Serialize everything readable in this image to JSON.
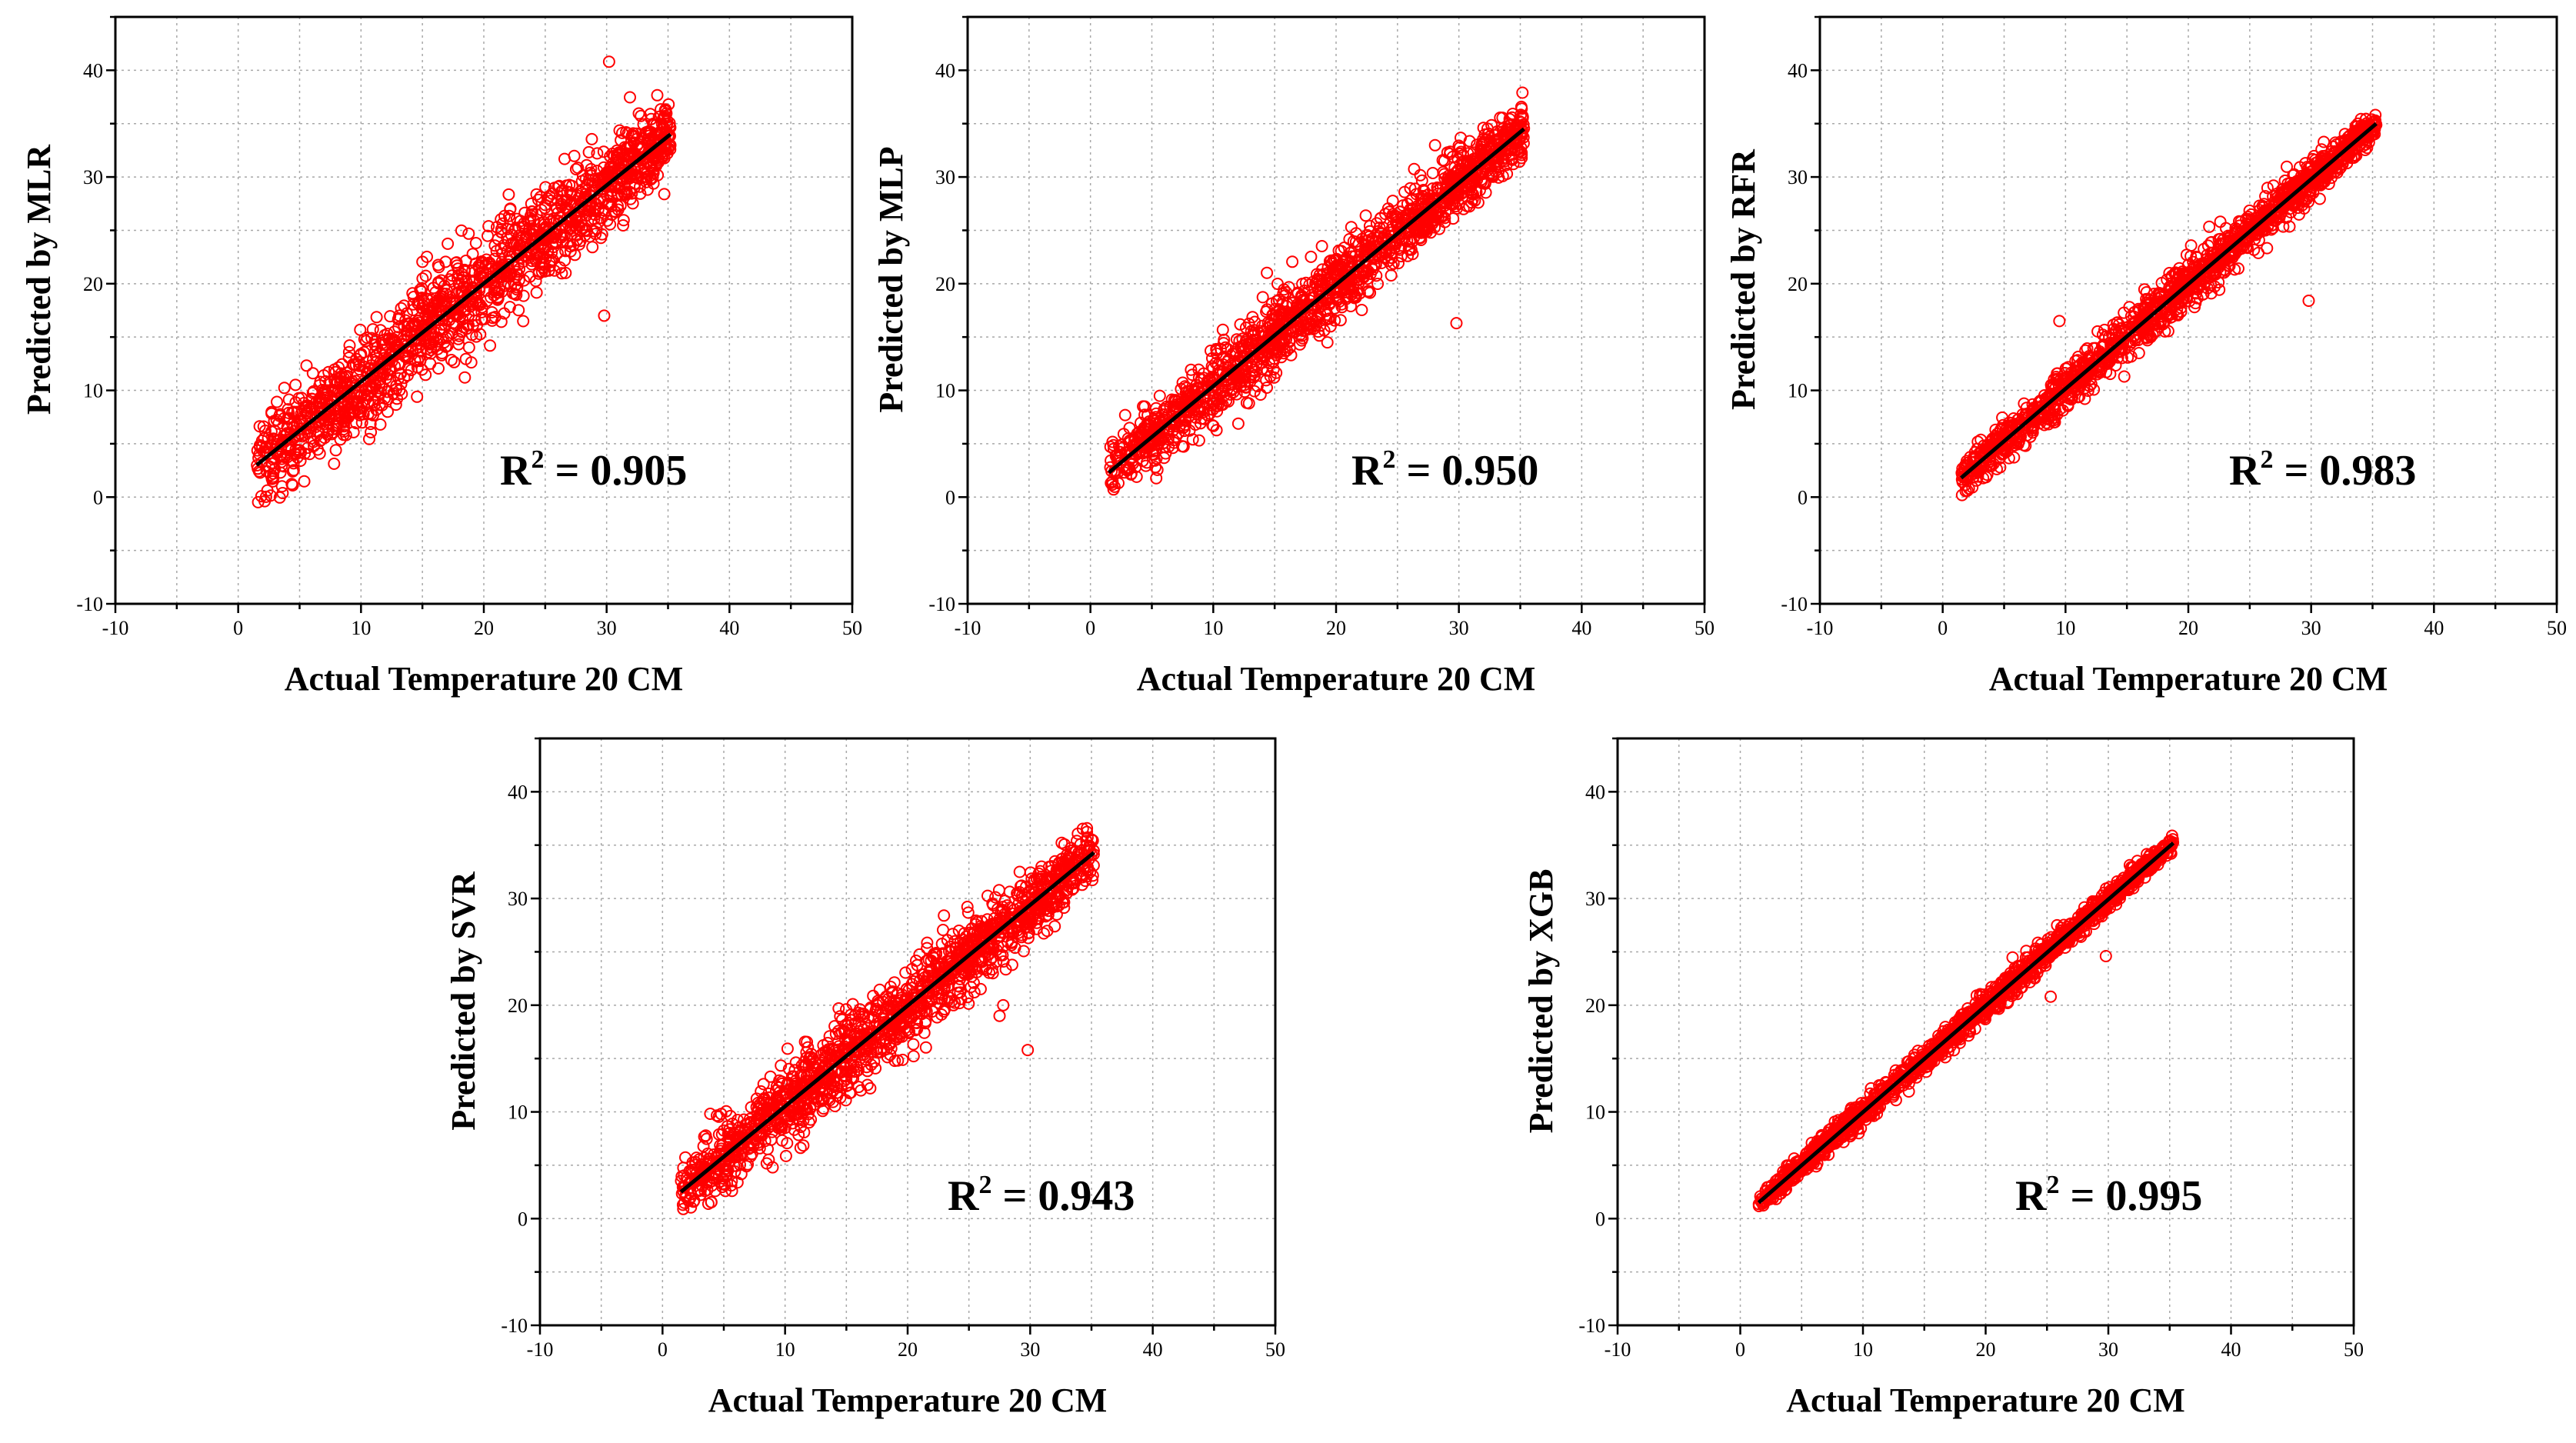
{
  "figure": {
    "description_color": "#ff0000",
    "marker_color": "#ff0000",
    "fit_line_color": "#000000",
    "grid_color": "#a8a8a8"
  },
  "chart_data": [
    {
      "id": "mlr",
      "type": "scatter",
      "xlabel": "Actual Temperature 20 CM",
      "ylabel": "Predicted by MLR",
      "xlim": [
        -10,
        50
      ],
      "ylim": [
        -10,
        45
      ],
      "xticks": [
        -10,
        0,
        10,
        20,
        30,
        40,
        50
      ],
      "yticks": [
        -10,
        0,
        10,
        20,
        30,
        40
      ],
      "grid": true,
      "r2_prefix": "R",
      "r2_sup": "2",
      "r2_value": " = 0.905",
      "r2": 0.905,
      "fit_line": {
        "x": [
          1.5,
          35.2
        ],
        "y": [
          3.0,
          34.0
        ]
      },
      "spread": 3.6,
      "outliers": [
        [
          30.2,
          40.8
        ],
        [
          29.8,
          17.0
        ],
        [
          34.8,
          36.2
        ]
      ]
    },
    {
      "id": "mlp",
      "type": "scatter",
      "xlabel": "Actual Temperature 20 CM",
      "ylabel": "Predicted by MLP",
      "xlim": [
        -10,
        50
      ],
      "ylim": [
        -10,
        45
      ],
      "xticks": [
        -10,
        0,
        10,
        20,
        30,
        40,
        50
      ],
      "yticks": [
        -10,
        0,
        10,
        20,
        30,
        40
      ],
      "grid": true,
      "r2_prefix": "R",
      "r2_sup": "2",
      "r2_value": " = 0.950",
      "r2": 0.95,
      "fit_line": {
        "x": [
          1.5,
          35.3
        ],
        "y": [
          2.3,
          34.5
        ]
      },
      "spread": 2.6,
      "outliers": [
        [
          29.8,
          16.3
        ],
        [
          32.0,
          34.6
        ]
      ]
    },
    {
      "id": "rfr",
      "type": "scatter",
      "xlabel": "Actual Temperature 20 CM",
      "ylabel": "Predicted by RFR",
      "xlim": [
        -10,
        50
      ],
      "ylim": [
        -10,
        45
      ],
      "xticks": [
        -10,
        0,
        10,
        20,
        30,
        40,
        50
      ],
      "yticks": [
        -10,
        0,
        10,
        20,
        30,
        40
      ],
      "grid": true,
      "r2_prefix": "R",
      "r2_sup": "2",
      "r2_value": " = 0.983",
      "r2": 0.983,
      "fit_line": {
        "x": [
          1.5,
          35.3
        ],
        "y": [
          1.8,
          35.0
        ]
      },
      "spread": 1.6,
      "outliers": [
        [
          29.8,
          18.4
        ],
        [
          9.5,
          16.5
        ]
      ]
    },
    {
      "id": "svr",
      "type": "scatter",
      "xlabel": "Actual Temperature 20 CM",
      "ylabel": "Predicted by SVR",
      "xlim": [
        -10,
        50
      ],
      "ylim": [
        -10,
        45
      ],
      "xticks": [
        -10,
        0,
        10,
        20,
        30,
        40,
        50
      ],
      "yticks": [
        -10,
        0,
        10,
        20,
        30,
        40
      ],
      "grid": true,
      "r2_prefix": "R",
      "r2_sup": "2",
      "r2_value": " = 0.943",
      "r2": 0.943,
      "fit_line": {
        "x": [
          1.5,
          35.2
        ],
        "y": [
          2.5,
          34.3
        ]
      },
      "spread": 2.8,
      "outliers": [
        [
          29.8,
          15.8
        ],
        [
          27.5,
          19.0
        ],
        [
          27.8,
          20.0
        ]
      ]
    },
    {
      "id": "xgb",
      "type": "scatter",
      "xlabel": "Actual Temperature 20 CM",
      "ylabel": "Predicted by XGB",
      "xlim": [
        -10,
        50
      ],
      "ylim": [
        -10,
        45
      ],
      "xticks": [
        -10,
        0,
        10,
        20,
        30,
        40,
        50
      ],
      "yticks": [
        -10,
        0,
        10,
        20,
        30,
        40
      ],
      "grid": true,
      "r2_prefix": "R",
      "r2_sup": "2",
      "r2_value": " = 0.995",
      "r2": 0.995,
      "fit_line": {
        "x": [
          1.5,
          35.3
        ],
        "y": [
          1.5,
          35.2
        ]
      },
      "spread": 0.9,
      "outliers": [
        [
          29.8,
          24.6
        ],
        [
          25.3,
          20.8
        ]
      ]
    }
  ]
}
